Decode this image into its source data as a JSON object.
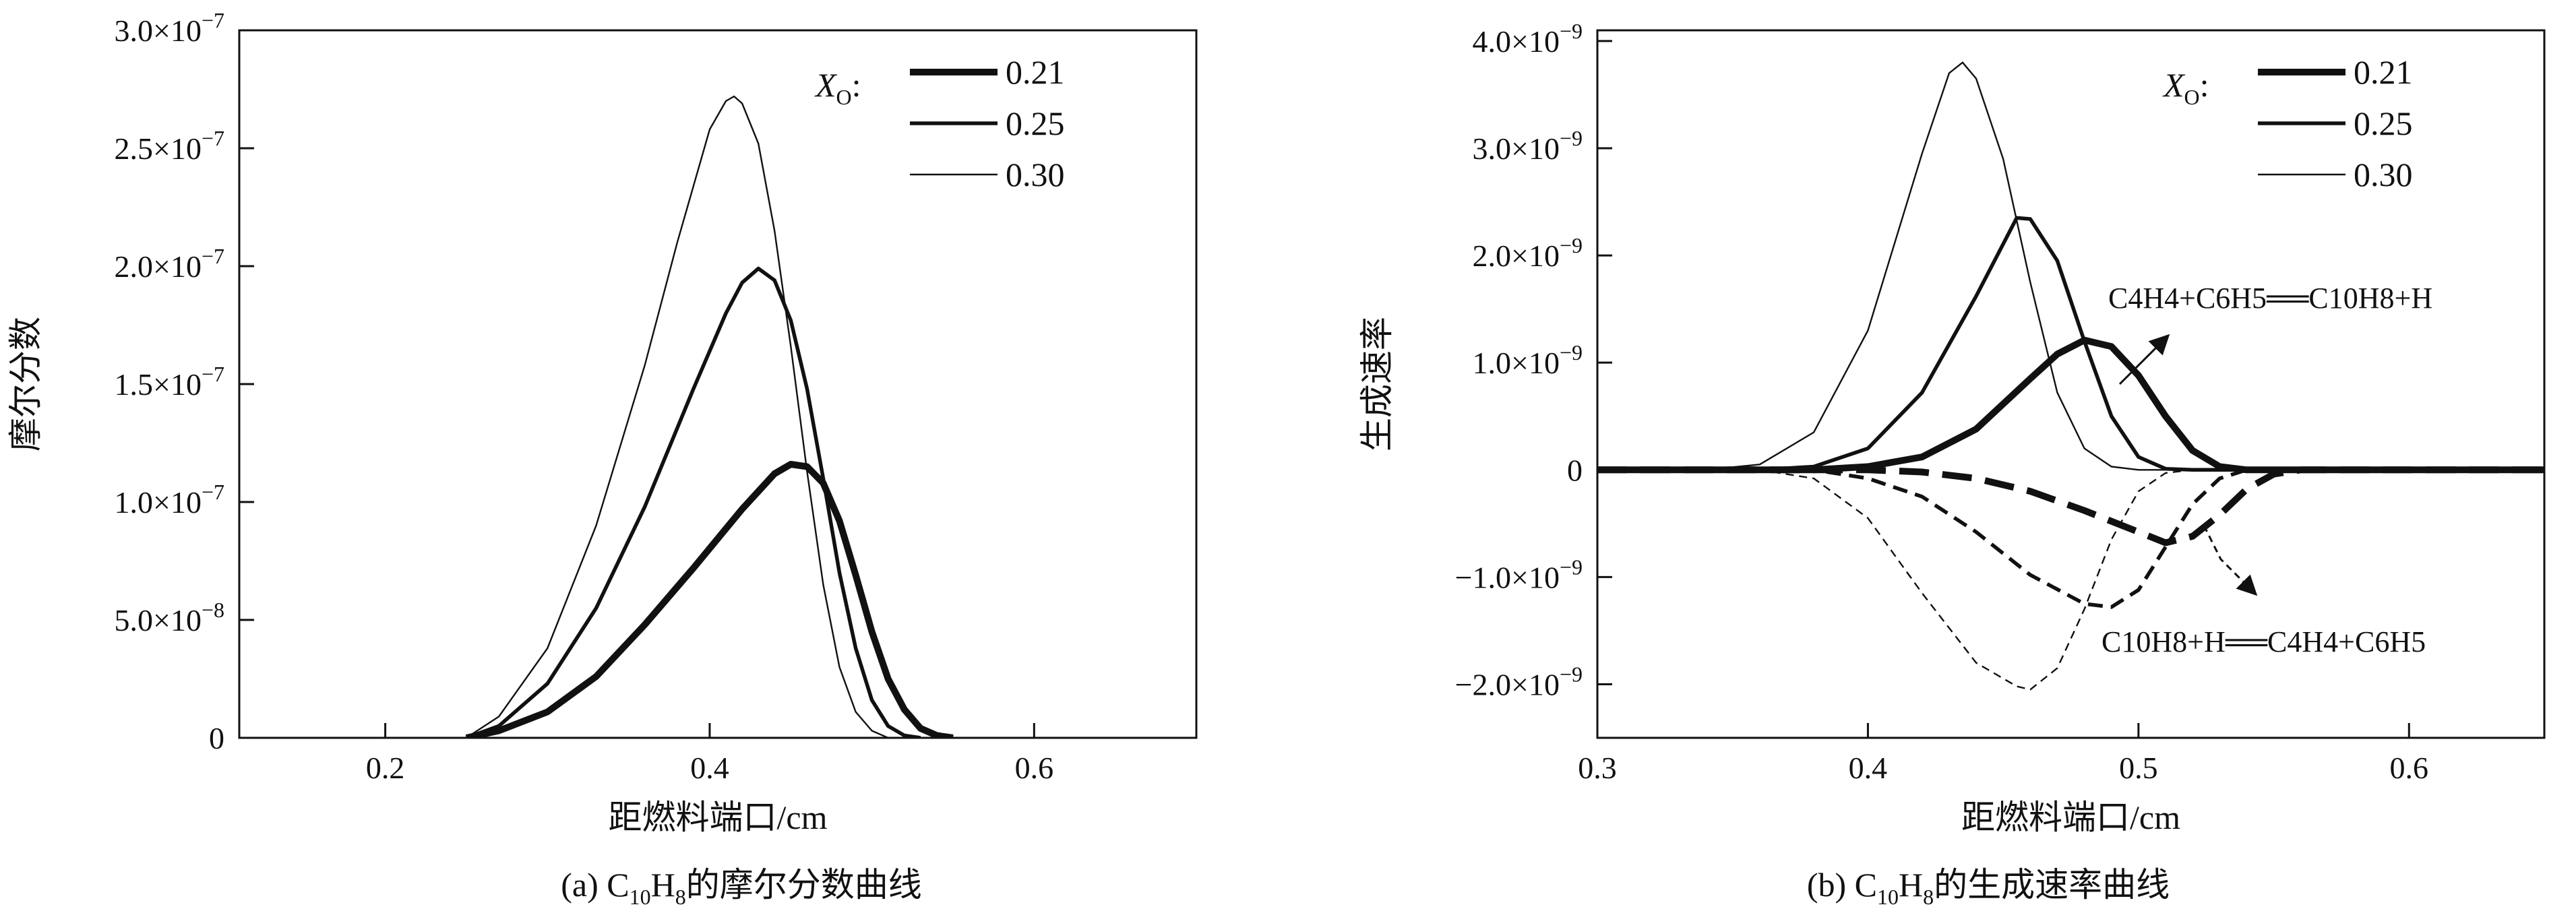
{
  "chart_data": [
    {
      "type": "line",
      "caption_prefix": "(a) C",
      "caption_sub1": "10",
      "caption_mid": "H",
      "caption_sub2": "8",
      "caption_suffix": "的摩尔分数曲线",
      "xlabel": "距燃料端口/cm",
      "ylabel": "摩尔分数",
      "xlim": [
        0.11,
        0.7
      ],
      "ylim": [
        0,
        3e-07
      ],
      "xticks": [
        {
          "v": 0.2,
          "label": "0.2"
        },
        {
          "v": 0.4,
          "label": "0.4"
        },
        {
          "v": 0.6,
          "label": "0.6"
        }
      ],
      "yticks": [
        {
          "v": 0,
          "base": "0",
          "exp": ""
        },
        {
          "v": 5e-08,
          "base": "5.0×10",
          "exp": "−8"
        },
        {
          "v": 1e-07,
          "base": "1.0×10",
          "exp": "−7"
        },
        {
          "v": 1.5e-07,
          "base": "1.5×10",
          "exp": "−7"
        },
        {
          "v": 2e-07,
          "base": "2.0×10",
          "exp": "−7"
        },
        {
          "v": 2.5e-07,
          "base": "2.5×10",
          "exp": "−7"
        },
        {
          "v": 3e-07,
          "base": "3.0×10",
          "exp": "−7"
        }
      ],
      "legend_title": "X",
      "legend_title_sub": "O",
      "legend_title_suffix": ":",
      "legend_placement": "top-right",
      "grid": false,
      "series": [
        {
          "name": "0.21",
          "style": "thick",
          "points": [
            [
              0.25,
              0
            ],
            [
              0.27,
              3e-09
            ],
            [
              0.3,
              1.1e-08
            ],
            [
              0.33,
              2.6e-08
            ],
            [
              0.36,
              4.8e-08
            ],
            [
              0.39,
              7.2e-08
            ],
            [
              0.42,
              9.7e-08
            ],
            [
              0.44,
              1.12e-07
            ],
            [
              0.45,
              1.16e-07
            ],
            [
              0.46,
              1.15e-07
            ],
            [
              0.47,
              1.08e-07
            ],
            [
              0.48,
              9.2e-08
            ],
            [
              0.49,
              6.9e-08
            ],
            [
              0.5,
              4.5e-08
            ],
            [
              0.51,
              2.5e-08
            ],
            [
              0.52,
              1.2e-08
            ],
            [
              0.53,
              4e-09
            ],
            [
              0.54,
              1e-09
            ],
            [
              0.55,
              0
            ]
          ]
        },
        {
          "name": "0.25",
          "style": "medium",
          "points": [
            [
              0.25,
              0
            ],
            [
              0.27,
              5e-09
            ],
            [
              0.3,
              2.3e-08
            ],
            [
              0.33,
              5.5e-08
            ],
            [
              0.36,
              9.8e-08
            ],
            [
              0.39,
              1.48e-07
            ],
            [
              0.41,
              1.8e-07
            ],
            [
              0.42,
              1.93e-07
            ],
            [
              0.43,
              1.99e-07
            ],
            [
              0.44,
              1.94e-07
            ],
            [
              0.45,
              1.77e-07
            ],
            [
              0.46,
              1.48e-07
            ],
            [
              0.47,
              1.1e-07
            ],
            [
              0.48,
              7e-08
            ],
            [
              0.49,
              3.8e-08
            ],
            [
              0.5,
              1.6e-08
            ],
            [
              0.51,
              5e-09
            ],
            [
              0.52,
              1e-09
            ],
            [
              0.53,
              0
            ]
          ]
        },
        {
          "name": "0.30",
          "style": "thin",
          "points": [
            [
              0.25,
              0
            ],
            [
              0.27,
              9e-09
            ],
            [
              0.3,
              3.8e-08
            ],
            [
              0.33,
              9e-08
            ],
            [
              0.36,
              1.58e-07
            ],
            [
              0.38,
              2.1e-07
            ],
            [
              0.4,
              2.58e-07
            ],
            [
              0.41,
              2.7e-07
            ],
            [
              0.415,
              2.72e-07
            ],
            [
              0.42,
              2.69e-07
            ],
            [
              0.43,
              2.52e-07
            ],
            [
              0.44,
              2.15e-07
            ],
            [
              0.45,
              1.66e-07
            ],
            [
              0.46,
              1.13e-07
            ],
            [
              0.47,
              6.5e-08
            ],
            [
              0.48,
              3e-08
            ],
            [
              0.49,
              1.1e-08
            ],
            [
              0.5,
              3e-09
            ],
            [
              0.51,
              0
            ]
          ]
        }
      ]
    },
    {
      "type": "line",
      "caption_prefix": "(b) C",
      "caption_sub1": "10",
      "caption_mid": "H",
      "caption_sub2": "8",
      "caption_suffix": "的生成速率曲线",
      "xlabel": "距燃料端口/cm",
      "ylabel": "生成速率",
      "xlim": [
        0.3,
        0.65
      ],
      "ylim": [
        -2.5e-09,
        4.1e-09
      ],
      "xticks": [
        {
          "v": 0.3,
          "label": "0.3"
        },
        {
          "v": 0.4,
          "label": "0.4"
        },
        {
          "v": 0.5,
          "label": "0.5"
        },
        {
          "v": 0.6,
          "label": "0.6"
        }
      ],
      "yticks": [
        {
          "v": -2e-09,
          "base": "−2.0×10",
          "exp": "−9"
        },
        {
          "v": -1e-09,
          "base": "−1.0×10",
          "exp": "−9"
        },
        {
          "v": 0,
          "base": "0",
          "exp": ""
        },
        {
          "v": 1e-09,
          "base": "1.0×10",
          "exp": "−9"
        },
        {
          "v": 2e-09,
          "base": "2.0×10",
          "exp": "−9"
        },
        {
          "v": 3e-09,
          "base": "3.0×10",
          "exp": "−9"
        },
        {
          "v": 4e-09,
          "base": "4.0×10",
          "exp": "−9"
        }
      ],
      "legend_title": "X",
      "legend_title_sub": "O",
      "legend_title_suffix": ":",
      "legend_placement": "top-right",
      "grid": false,
      "annotations": [
        {
          "id": "forward",
          "text": "C4H4+C6H5══C10H8+H"
        },
        {
          "id": "reverse",
          "text": "C10H8+H══C4H4+C6H5"
        }
      ],
      "series": [
        {
          "name": "0.21",
          "style": "thick",
          "direction": "forward",
          "points": [
            [
              0.3,
              0
            ],
            [
              0.38,
              0
            ],
            [
              0.4,
              3e-11
            ],
            [
              0.42,
              1.2e-10
            ],
            [
              0.44,
              3.8e-10
            ],
            [
              0.46,
              8.5e-10
            ],
            [
              0.47,
              1.08e-09
            ],
            [
              0.48,
              1.21e-09
            ],
            [
              0.49,
              1.15e-09
            ],
            [
              0.5,
              8.8e-10
            ],
            [
              0.51,
              5e-10
            ],
            [
              0.52,
              1.8e-10
            ],
            [
              0.53,
              3e-11
            ],
            [
              0.54,
              0
            ],
            [
              0.65,
              0
            ]
          ]
        },
        {
          "name": "0.25",
          "style": "medium",
          "direction": "forward",
          "points": [
            [
              0.3,
              0
            ],
            [
              0.36,
              0
            ],
            [
              0.38,
              3e-11
            ],
            [
              0.4,
              2e-10
            ],
            [
              0.42,
              7.2e-10
            ],
            [
              0.44,
              1.62e-09
            ],
            [
              0.455,
              2.35e-09
            ],
            [
              0.46,
              2.34e-09
            ],
            [
              0.47,
              1.95e-09
            ],
            [
              0.48,
              1.2e-09
            ],
            [
              0.49,
              5e-10
            ],
            [
              0.5,
              1.2e-10
            ],
            [
              0.51,
              1e-11
            ],
            [
              0.52,
              0
            ],
            [
              0.65,
              0
            ]
          ]
        },
        {
          "name": "0.30",
          "style": "thin",
          "direction": "forward",
          "points": [
            [
              0.3,
              0
            ],
            [
              0.34,
              0
            ],
            [
              0.36,
              5e-11
            ],
            [
              0.38,
              3.5e-10
            ],
            [
              0.4,
              1.3e-09
            ],
            [
              0.42,
              2.95e-09
            ],
            [
              0.43,
              3.7e-09
            ],
            [
              0.435,
              3.8e-09
            ],
            [
              0.44,
              3.65e-09
            ],
            [
              0.45,
              2.9e-09
            ],
            [
              0.46,
              1.75e-09
            ],
            [
              0.47,
              7.2e-10
            ],
            [
              0.48,
              2e-10
            ],
            [
              0.49,
              3e-11
            ],
            [
              0.5,
              0
            ],
            [
              0.65,
              0
            ]
          ]
        },
        {
          "name": "0.21",
          "style": "thick",
          "direction": "reverse",
          "points": [
            [
              0.3,
              0
            ],
            [
              0.4,
              0
            ],
            [
              0.42,
              -2e-11
            ],
            [
              0.44,
              -8e-11
            ],
            [
              0.46,
              -2e-10
            ],
            [
              0.48,
              -3.8e-10
            ],
            [
              0.5,
              -5.8e-10
            ],
            [
              0.51,
              -6.8e-10
            ],
            [
              0.52,
              -6.2e-10
            ],
            [
              0.53,
              -4.2e-10
            ],
            [
              0.54,
              -1.8e-10
            ],
            [
              0.55,
              -4e-11
            ],
            [
              0.56,
              0
            ],
            [
              0.65,
              0
            ]
          ]
        },
        {
          "name": "0.25",
          "style": "medium",
          "direction": "reverse",
          "points": [
            [
              0.3,
              0
            ],
            [
              0.38,
              0
            ],
            [
              0.4,
              -8e-11
            ],
            [
              0.42,
              -2.5e-10
            ],
            [
              0.44,
              -5.8e-10
            ],
            [
              0.46,
              -9.8e-10
            ],
            [
              0.48,
              -1.25e-09
            ],
            [
              0.49,
              -1.28e-09
            ],
            [
              0.5,
              -1.12e-09
            ],
            [
              0.51,
              -7.2e-10
            ],
            [
              0.52,
              -3.2e-10
            ],
            [
              0.53,
              -8e-11
            ],
            [
              0.54,
              0
            ],
            [
              0.65,
              0
            ]
          ]
        },
        {
          "name": "0.30",
          "style": "thin",
          "direction": "reverse",
          "points": [
            [
              0.3,
              0
            ],
            [
              0.36,
              0
            ],
            [
              0.38,
              -8e-11
            ],
            [
              0.4,
              -4.5e-10
            ],
            [
              0.42,
              -1.15e-09
            ],
            [
              0.44,
              -1.8e-09
            ],
            [
              0.455,
              -2.02e-09
            ],
            [
              0.46,
              -2.05e-09
            ],
            [
              0.47,
              -1.85e-09
            ],
            [
              0.48,
              -1.3e-09
            ],
            [
              0.49,
              -6.5e-10
            ],
            [
              0.5,
              -2e-10
            ],
            [
              0.51,
              -3e-11
            ],
            [
              0.52,
              0
            ],
            [
              0.65,
              0
            ]
          ]
        }
      ]
    }
  ]
}
